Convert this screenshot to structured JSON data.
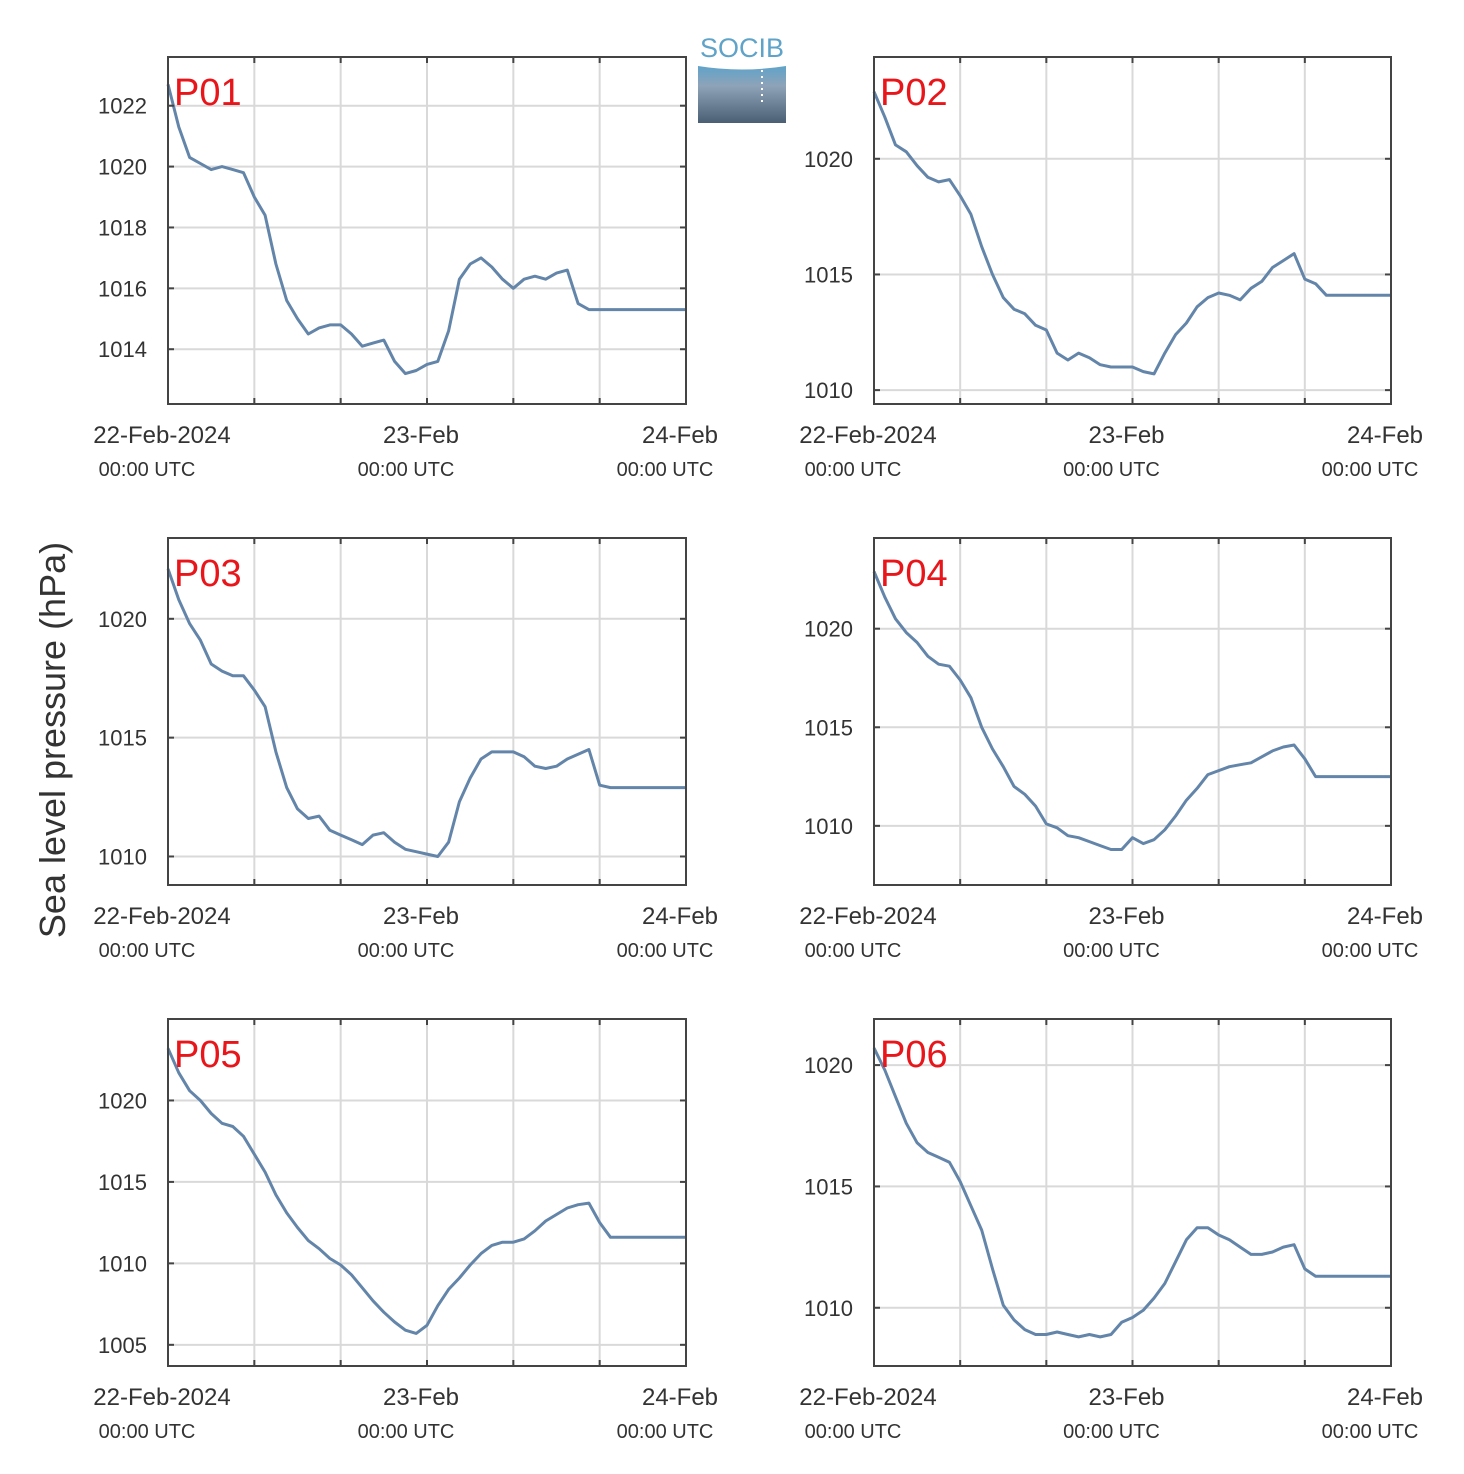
{
  "ylabel": "Sea level pressure (hPa)",
  "logo": {
    "text": "SOCIB"
  },
  "colors": {
    "line": "#6385aa",
    "label": "#e8161b",
    "axis": "#444444",
    "grid": "#d9d9d9",
    "logo_top": "#5fa3c9",
    "logo_bottom": "#4a5e74"
  },
  "chart_data": [
    {
      "type": "line",
      "title": "P01",
      "x_ticks": [
        {
          "x": 0,
          "label": "22-Feb-2024",
          "sub": "00:00 UTC"
        },
        {
          "x": 24,
          "label": "23-Feb",
          "sub": "00:00 UTC"
        },
        {
          "x": 48,
          "label": "24-Feb",
          "sub": "00:00 UTC"
        }
      ],
      "xlim": [
        0,
        48
      ],
      "ylim": [
        1012.2,
        1023.6
      ],
      "yticks": [
        1014,
        1016,
        1018,
        1020,
        1022
      ],
      "grid": true,
      "x": [
        0,
        1,
        2,
        3,
        4,
        5,
        6,
        7,
        8,
        9,
        10,
        11,
        12,
        13,
        14,
        15,
        16,
        17,
        18,
        19,
        20,
        21,
        22,
        23,
        24,
        25,
        26,
        27,
        28,
        29,
        30,
        31,
        32,
        33,
        34,
        35,
        36,
        37,
        38,
        39,
        40,
        41,
        42,
        43,
        44,
        45,
        46,
        47,
        48
      ],
      "y": [
        1022.7,
        1021.3,
        1020.3,
        1020.1,
        1019.9,
        1020.0,
        1019.9,
        1019.8,
        1019.0,
        1018.4,
        1016.8,
        1015.6,
        1015.0,
        1014.5,
        1014.7,
        1014.8,
        1014.8,
        1014.5,
        1014.1,
        1014.2,
        1014.3,
        1013.6,
        1013.2,
        1013.3,
        1013.5,
        1013.6,
        1014.6,
        1016.3,
        1016.8,
        1017.0,
        1016.7,
        1016.3,
        1016.0,
        1016.3,
        1016.4,
        1016.3,
        1016.5,
        1016.6,
        1015.5,
        1015.3,
        1015.3,
        1015.3,
        1015.3,
        1015.3,
        1015.3,
        1015.3,
        1015.3,
        1015.3,
        1015.3
      ]
    },
    {
      "type": "line",
      "title": "P02",
      "x_ticks": [
        {
          "x": 0,
          "label": "22-Feb-2024",
          "sub": "00:00 UTC"
        },
        {
          "x": 24,
          "label": "23-Feb",
          "sub": "00:00 UTC"
        },
        {
          "x": 48,
          "label": "24-Feb",
          "sub": "00:00 UTC"
        }
      ],
      "xlim": [
        0,
        48
      ],
      "ylim": [
        1009.4,
        1024.4
      ],
      "yticks": [
        1010,
        1015,
        1020
      ],
      "grid": true,
      "x": [
        0,
        1,
        2,
        3,
        4,
        5,
        6,
        7,
        8,
        9,
        10,
        11,
        12,
        13,
        14,
        15,
        16,
        17,
        18,
        19,
        20,
        21,
        22,
        23,
        24,
        25,
        26,
        27,
        28,
        29,
        30,
        31,
        32,
        33,
        34,
        35,
        36,
        37,
        38,
        39,
        40,
        41,
        42,
        43,
        44,
        45,
        46,
        47,
        48
      ],
      "y": [
        1022.9,
        1021.8,
        1020.6,
        1020.3,
        1019.7,
        1019.2,
        1019.0,
        1019.1,
        1018.4,
        1017.6,
        1016.2,
        1015.0,
        1014.0,
        1013.5,
        1013.3,
        1012.8,
        1012.6,
        1011.6,
        1011.3,
        1011.6,
        1011.4,
        1011.1,
        1011.0,
        1011.0,
        1011.0,
        1010.8,
        1010.7,
        1011.6,
        1012.4,
        1012.9,
        1013.6,
        1014.0,
        1014.2,
        1014.1,
        1013.9,
        1014.4,
        1014.7,
        1015.3,
        1015.6,
        1015.9,
        1014.8,
        1014.6,
        1014.1,
        1014.1,
        1014.1,
        1014.1,
        1014.1,
        1014.1,
        1014.1
      ]
    },
    {
      "type": "line",
      "title": "P03",
      "x_ticks": [
        {
          "x": 0,
          "label": "22-Feb-2024",
          "sub": "00:00 UTC"
        },
        {
          "x": 24,
          "label": "23-Feb",
          "sub": "00:00 UTC"
        },
        {
          "x": 48,
          "label": "24-Feb",
          "sub": "00:00 UTC"
        }
      ],
      "xlim": [
        0,
        48
      ],
      "ylim": [
        1008.8,
        1023.4
      ],
      "yticks": [
        1010,
        1015,
        1020
      ],
      "grid": true,
      "x": [
        0,
        1,
        2,
        3,
        4,
        5,
        6,
        7,
        8,
        9,
        10,
        11,
        12,
        13,
        14,
        15,
        16,
        17,
        18,
        19,
        20,
        21,
        22,
        23,
        24,
        25,
        26,
        27,
        28,
        29,
        30,
        31,
        32,
        33,
        34,
        35,
        36,
        37,
        38,
        39,
        40,
        41,
        42,
        43,
        44,
        45,
        46,
        47,
        48
      ],
      "y": [
        1022.1,
        1020.8,
        1019.8,
        1019.1,
        1018.1,
        1017.8,
        1017.6,
        1017.6,
        1017.0,
        1016.3,
        1014.4,
        1012.9,
        1012.0,
        1011.6,
        1011.7,
        1011.1,
        1010.9,
        1010.7,
        1010.5,
        1010.9,
        1011.0,
        1010.6,
        1010.3,
        1010.2,
        1010.1,
        1010.0,
        1010.6,
        1012.3,
        1013.3,
        1014.1,
        1014.4,
        1014.4,
        1014.4,
        1014.2,
        1013.8,
        1013.7,
        1013.8,
        1014.1,
        1014.3,
        1014.5,
        1013.0,
        1012.9,
        1012.9,
        1012.9,
        1012.9,
        1012.9,
        1012.9,
        1012.9,
        1012.9
      ]
    },
    {
      "type": "line",
      "title": "P04",
      "x_ticks": [
        {
          "x": 0,
          "label": "22-Feb-2024",
          "sub": "00:00 UTC"
        },
        {
          "x": 24,
          "label": "23-Feb",
          "sub": "00:00 UTC"
        },
        {
          "x": 48,
          "label": "24-Feb",
          "sub": "00:00 UTC"
        }
      ],
      "xlim": [
        0,
        48
      ],
      "ylim": [
        1007.0,
        1024.6
      ],
      "yticks": [
        1010,
        1015,
        1020
      ],
      "grid": true,
      "x": [
        0,
        1,
        2,
        3,
        4,
        5,
        6,
        7,
        8,
        9,
        10,
        11,
        12,
        13,
        14,
        15,
        16,
        17,
        18,
        19,
        20,
        21,
        22,
        23,
        24,
        25,
        26,
        27,
        28,
        29,
        30,
        31,
        32,
        33,
        34,
        35,
        36,
        37,
        38,
        39,
        40,
        41,
        42,
        43,
        44,
        45,
        46,
        47,
        48
      ],
      "y": [
        1022.9,
        1021.6,
        1020.5,
        1019.8,
        1019.3,
        1018.6,
        1018.2,
        1018.1,
        1017.4,
        1016.5,
        1015.0,
        1013.9,
        1013.0,
        1012.0,
        1011.6,
        1011.0,
        1010.1,
        1009.9,
        1009.5,
        1009.4,
        1009.2,
        1009.0,
        1008.8,
        1008.8,
        1009.4,
        1009.1,
        1009.3,
        1009.8,
        1010.5,
        1011.3,
        1011.9,
        1012.6,
        1012.8,
        1013.0,
        1013.1,
        1013.2,
        1013.5,
        1013.8,
        1014.0,
        1014.1,
        1013.4,
        1012.5,
        1012.5,
        1012.5,
        1012.5,
        1012.5,
        1012.5,
        1012.5,
        1012.5
      ]
    },
    {
      "type": "line",
      "title": "P05",
      "x_ticks": [
        {
          "x": 0,
          "label": "22-Feb-2024",
          "sub": "00:00 UTC"
        },
        {
          "x": 24,
          "label": "23-Feb",
          "sub": "00:00 UTC"
        },
        {
          "x": 48,
          "label": "24-Feb",
          "sub": "00:00 UTC"
        }
      ],
      "xlim": [
        0,
        48
      ],
      "ylim": [
        1003.7,
        1025.0
      ],
      "yticks": [
        1005,
        1010,
        1015,
        1020
      ],
      "grid": true,
      "x": [
        0,
        1,
        2,
        3,
        4,
        5,
        6,
        7,
        8,
        9,
        10,
        11,
        12,
        13,
        14,
        15,
        16,
        17,
        18,
        19,
        20,
        21,
        22,
        23,
        24,
        25,
        26,
        27,
        28,
        29,
        30,
        31,
        32,
        33,
        34,
        35,
        36,
        37,
        38,
        39,
        40,
        41,
        42,
        43,
        44,
        45,
        46,
        47,
        48
      ],
      "y": [
        1023.2,
        1021.7,
        1020.6,
        1020.0,
        1019.2,
        1018.6,
        1018.4,
        1017.8,
        1016.7,
        1015.6,
        1014.2,
        1013.1,
        1012.2,
        1011.4,
        1010.9,
        1010.3,
        1009.9,
        1009.3,
        1008.5,
        1007.7,
        1007.0,
        1006.4,
        1005.9,
        1005.7,
        1006.2,
        1007.4,
        1008.4,
        1009.1,
        1009.9,
        1010.6,
        1011.1,
        1011.3,
        1011.3,
        1011.5,
        1012.0,
        1012.6,
        1013.0,
        1013.4,
        1013.6,
        1013.7,
        1012.5,
        1011.6,
        1011.6,
        1011.6,
        1011.6,
        1011.6,
        1011.6,
        1011.6,
        1011.6
      ]
    },
    {
      "type": "line",
      "title": "P06",
      "x_ticks": [
        {
          "x": 0,
          "label": "22-Feb-2024",
          "sub": "00:00 UTC"
        },
        {
          "x": 24,
          "label": "23-Feb",
          "sub": "00:00 UTC"
        },
        {
          "x": 48,
          "label": "24-Feb",
          "sub": "00:00 UTC"
        }
      ],
      "xlim": [
        0,
        48
      ],
      "ylim": [
        1007.6,
        1021.9
      ],
      "yticks": [
        1010,
        1015,
        1020
      ],
      "grid": true,
      "x": [
        0,
        1,
        2,
        3,
        4,
        5,
        6,
        7,
        8,
        9,
        10,
        11,
        12,
        13,
        14,
        15,
        16,
        17,
        18,
        19,
        20,
        21,
        22,
        23,
        24,
        25,
        26,
        27,
        28,
        29,
        30,
        31,
        32,
        33,
        34,
        35,
        36,
        37,
        38,
        39,
        40,
        41,
        42,
        43,
        44,
        45,
        46,
        47,
        48
      ],
      "y": [
        1020.7,
        1019.8,
        1018.7,
        1017.6,
        1016.8,
        1016.4,
        1016.2,
        1016.0,
        1015.2,
        1014.2,
        1013.2,
        1011.6,
        1010.1,
        1009.5,
        1009.1,
        1008.9,
        1008.9,
        1009.0,
        1008.9,
        1008.8,
        1008.9,
        1008.8,
        1008.9,
        1009.4,
        1009.6,
        1009.9,
        1010.4,
        1011.0,
        1011.9,
        1012.8,
        1013.3,
        1013.3,
        1013.0,
        1012.8,
        1012.5,
        1012.2,
        1012.2,
        1012.3,
        1012.5,
        1012.6,
        1011.6,
        1011.3,
        1011.3,
        1011.3,
        1011.3,
        1011.3,
        1011.3,
        1011.3,
        1011.3
      ]
    }
  ]
}
